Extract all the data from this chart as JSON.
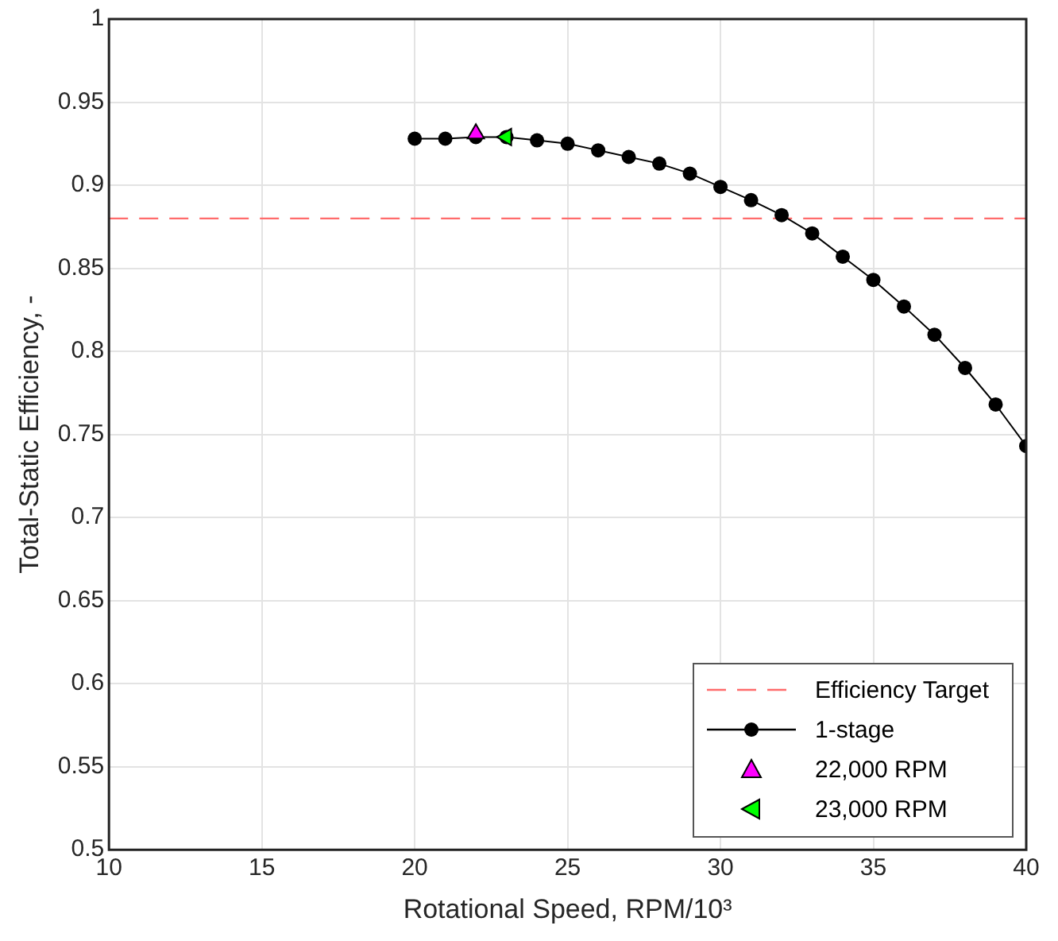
{
  "chart_data": {
    "type": "line",
    "xlabel": "Rotational Speed, RPM/10³",
    "ylabel": "Total-Static Efficiency, -",
    "xlim": [
      10,
      40
    ],
    "xticks": [
      10,
      15,
      20,
      25,
      30,
      35,
      40
    ],
    "ylim": [
      0.5,
      1
    ],
    "yticks": [
      0.5,
      0.55,
      0.6,
      0.65,
      0.7,
      0.75,
      0.8,
      0.85,
      0.9,
      0.95,
      1
    ],
    "grid": true,
    "legend": "bottom right",
    "line_style": "solid",
    "ref_lines": [
      {
        "axis": "y",
        "value": 0.88,
        "label": "Efficiency Target",
        "color": "#ff6b6b",
        "line_style": "dashed"
      }
    ],
    "series": [
      {
        "name": "1-stage",
        "color": "#000000",
        "marker": "circle",
        "x": [
          20,
          21,
          22,
          23,
          24,
          25,
          26,
          27,
          28,
          29,
          30,
          31,
          32,
          33,
          34,
          35,
          36,
          37,
          38,
          39,
          40
        ],
        "values": [
          0.928,
          0.928,
          0.929,
          0.929,
          0.927,
          0.925,
          0.921,
          0.917,
          0.913,
          0.907,
          0.899,
          0.891,
          0.882,
          0.871,
          0.857,
          0.843,
          0.827,
          0.81,
          0.79,
          0.768,
          0.743
        ]
      },
      {
        "name": "22,000 RPM",
        "type": "scatter",
        "color": "#ff00ff",
        "marker": "triangle",
        "x": [
          22
        ],
        "values": [
          0.931
        ]
      },
      {
        "name": "23,000 RPM",
        "type": "scatter",
        "color": "#00ff00",
        "marker": "triangle-left",
        "x": [
          23
        ],
        "values": [
          0.929
        ]
      }
    ]
  }
}
